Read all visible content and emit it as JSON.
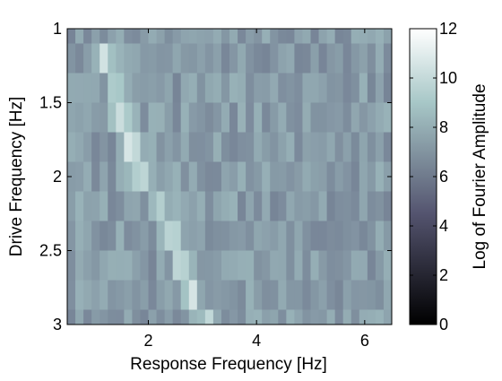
{
  "chart_data": {
    "type": "heatmap",
    "xlabel": "Response Frequency [Hz]",
    "ylabel": "Drive Frequency [Hz]",
    "colorbar_label": "Log of Fourier Amplitude",
    "xlim": [
      0.5,
      6.5
    ],
    "ylim": [
      1,
      3
    ],
    "y_reversed": true,
    "clim": [
      0,
      12
    ],
    "colormap": "bone",
    "x_ticks": [
      2,
      4,
      6
    ],
    "x_tick_labels": [
      "2",
      "4",
      "6"
    ],
    "y_ticks": [
      1,
      1.5,
      2,
      2.5,
      3
    ],
    "y_tick_labels": [
      "1",
      "1.5",
      "2",
      "2.5",
      "3"
    ],
    "colorbar_ticks": [
      0,
      2,
      4,
      6,
      8,
      10,
      12
    ],
    "colorbar_tick_labels": [
      "0",
      "2",
      "4",
      "6",
      "8",
      "10",
      "12"
    ],
    "drive_frequency_rows": [
      1.0,
      1.2,
      1.4,
      1.6,
      1.8,
      2.0,
      2.2,
      2.4,
      2.6,
      2.8,
      3.0
    ],
    "response_frequency_columns": [
      0.5,
      6.5,
      0.15
    ],
    "background_level": 7.3,
    "row_ridges": [
      {
        "drive": 1.0,
        "response": 2.1,
        "peak": 8.6
      },
      {
        "drive": 1.2,
        "response": 1.2,
        "peak": 10.6
      },
      {
        "drive": 1.4,
        "response": 1.4,
        "peak": 9.5
      },
      {
        "drive": 1.6,
        "response": 1.5,
        "peak": 10.8
      },
      {
        "drive": 1.8,
        "response": 1.7,
        "peak": 10.2
      },
      {
        "drive": 2.0,
        "response": 1.9,
        "peak": 9.8
      },
      {
        "drive": 2.2,
        "response": 2.2,
        "peak": 10.3
      },
      {
        "drive": 2.4,
        "response": 2.4,
        "peak": 10.0
      },
      {
        "drive": 2.6,
        "response": 2.6,
        "peak": 10.2
      },
      {
        "drive": 2.8,
        "response": 2.8,
        "peak": 10.4
      },
      {
        "drive": 3.0,
        "response": 3.1,
        "peak": 10.4
      }
    ]
  }
}
